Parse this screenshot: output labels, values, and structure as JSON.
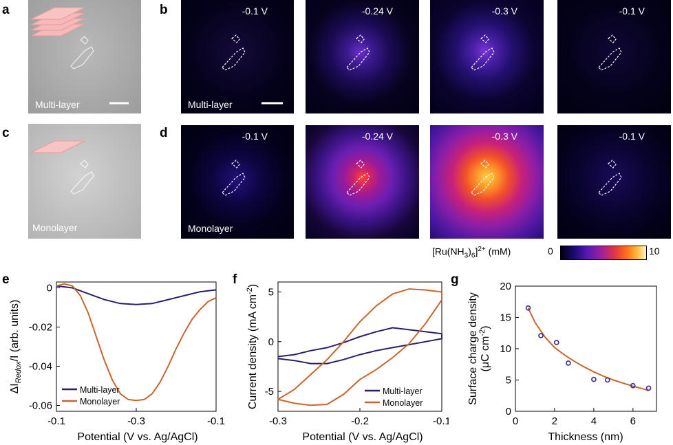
{
  "panels": {
    "a": {
      "letter": "a",
      "label": "Multi-layer"
    },
    "b": {
      "letter": "b",
      "row_label": "Multi-layer",
      "voltages": [
        "-0.1 V",
        "-0.24 V",
        "-0.3 V",
        "-0.1 V"
      ]
    },
    "c": {
      "letter": "c",
      "label": "Monolayer"
    },
    "d": {
      "letter": "d",
      "row_label": "Monolayer",
      "voltages": [
        "-0.1 V",
        "-0.24 V",
        "-0.3 V",
        "-0.1 V"
      ]
    }
  },
  "colorbar": {
    "label_main": "[Ru(NH",
    "label_sub": "3",
    "label_mid": ")",
    "label_sub2": "6",
    "label_end": "]",
    "label_sup": "2+",
    "label_unit": " (mM)",
    "min": "0",
    "max": "10"
  },
  "colors": {
    "multi": "#2b1d6b",
    "mono": "#c8652c",
    "points": "#3a2a8a"
  },
  "chart_data": [
    {
      "panel": "e",
      "type": "line",
      "xlabel": "Potential (V vs. Ag/AgCl)",
      "ylabel_pre": "ΔI",
      "ylabel_sub": "Redox",
      "ylabel_post": "/I (arb. units)",
      "xlim": [
        -0.1,
        -0.3
      ],
      "ylim": [
        -0.063,
        0.003
      ],
      "xticks": [
        -0.1,
        -0.3,
        -0.1
      ],
      "xticklabels": [
        "-0.1",
        "-0.3",
        "-0.1"
      ],
      "yticks": [
        0,
        -0.02,
        -0.04,
        -0.06
      ],
      "yticklabels": [
        "0",
        "-0.02",
        "-0.04",
        "-0.06"
      ],
      "legend": "bottom-left",
      "series": [
        {
          "name": "Multi-layer",
          "x": [
            0,
            0.1,
            0.2,
            0.3,
            0.4,
            0.5,
            0.6,
            0.7,
            0.8,
            0.9,
            1
          ],
          "y": [
            0.001,
            0,
            -0.003,
            -0.006,
            -0.008,
            -0.0085,
            -0.008,
            -0.006,
            -0.004,
            -0.002,
            -0.001
          ]
        },
        {
          "name": "Monolayer",
          "x": [
            0,
            0.05,
            0.1,
            0.15,
            0.2,
            0.25,
            0.3,
            0.35,
            0.4,
            0.45,
            0.5,
            0.55,
            0.6,
            0.65,
            0.7,
            0.75,
            0.8,
            0.85,
            0.9,
            0.95,
            1
          ],
          "y": [
            0.001,
            0.002,
            0.001,
            -0.004,
            -0.013,
            -0.025,
            -0.037,
            -0.047,
            -0.054,
            -0.057,
            -0.0575,
            -0.057,
            -0.054,
            -0.048,
            -0.04,
            -0.031,
            -0.023,
            -0.016,
            -0.011,
            -0.007,
            -0.005
          ]
        }
      ]
    },
    {
      "panel": "f",
      "type": "line",
      "xlabel": "Potential (V vs. Ag/AgCl)",
      "ylabel_pre": "Current density (mA cm",
      "ylabel_sup": "-2",
      "ylabel_post": ")",
      "xlim": [
        -0.3,
        -0.1
      ],
      "ylim": [
        -7,
        6
      ],
      "xticks": [
        -0.3,
        -0.2,
        -0.1
      ],
      "xticklabels": [
        "-0.3",
        "-0.2",
        "-0.1"
      ],
      "yticks": [
        5,
        0,
        -5
      ],
      "yticklabels": [
        "5",
        "0",
        "-5"
      ],
      "legend": "bottom-right",
      "series": [
        {
          "name": "Multi-layer",
          "x": [
            -0.3,
            -0.28,
            -0.26,
            -0.24,
            -0.22,
            -0.2,
            -0.18,
            -0.16,
            -0.14,
            -0.12,
            -0.1,
            -0.1,
            -0.12,
            -0.14,
            -0.16,
            -0.18,
            -0.2,
            -0.22,
            -0.24,
            -0.26,
            -0.28,
            -0.3
          ],
          "y": [
            -1.5,
            -1.3,
            -0.9,
            -0.6,
            -0.1,
            0.5,
            1.0,
            1.4,
            1.2,
            1.0,
            0.8,
            0.3,
            0.0,
            -0.3,
            -0.6,
            -0.9,
            -1.3,
            -1.8,
            -2.2,
            -2.2,
            -1.9,
            -1.7
          ]
        },
        {
          "name": "Monolayer",
          "x": [
            -0.3,
            -0.28,
            -0.26,
            -0.24,
            -0.22,
            -0.2,
            -0.18,
            -0.16,
            -0.14,
            -0.12,
            -0.1,
            -0.1,
            -0.12,
            -0.14,
            -0.16,
            -0.18,
            -0.2,
            -0.22,
            -0.24,
            -0.26,
            -0.28,
            -0.3
          ],
          "y": [
            -5.8,
            -4.8,
            -3.3,
            -1.8,
            0.0,
            2.0,
            3.6,
            4.8,
            5.3,
            5.2,
            5.0,
            4.2,
            1.8,
            -0.2,
            -1.6,
            -2.8,
            -3.8,
            -5.3,
            -6.3,
            -6.4,
            -6.2,
            -5.8
          ]
        }
      ]
    },
    {
      "panel": "g",
      "type": "scatter",
      "xlabel": "Thickness (nm)",
      "ylabel_line1": "Surface charge density",
      "ylabel_line2_pre": "(μC cm",
      "ylabel_line2_sup": "-2",
      "ylabel_line2_post": ")",
      "xlim": [
        0,
        7.2
      ],
      "ylim": [
        0,
        20
      ],
      "xticks": [
        0,
        2,
        4,
        6
      ],
      "xticklabels": [
        "0",
        "2",
        "4",
        "6"
      ],
      "yticks": [
        0,
        5,
        10,
        15,
        20
      ],
      "yticklabels": [
        "0",
        "5",
        "10",
        "15",
        "20"
      ],
      "points": {
        "x": [
          0.65,
          1.3,
          2.1,
          2.7,
          4.0,
          4.7,
          6.0,
          6.8
        ],
        "y": [
          16.5,
          12.1,
          11.0,
          7.7,
          5.1,
          5.0,
          4.1,
          3.7
        ]
      },
      "fit": {
        "x": [
          0.65,
          1.0,
          1.5,
          2.0,
          2.5,
          3.0,
          3.5,
          4.0,
          4.5,
          5.0,
          5.5,
          6.0,
          6.5,
          6.8
        ],
        "y": [
          16.5,
          14.2,
          11.9,
          10.2,
          9.0,
          8.0,
          7.1,
          6.3,
          5.6,
          5.0,
          4.5,
          4.0,
          3.6,
          3.3
        ]
      }
    }
  ]
}
